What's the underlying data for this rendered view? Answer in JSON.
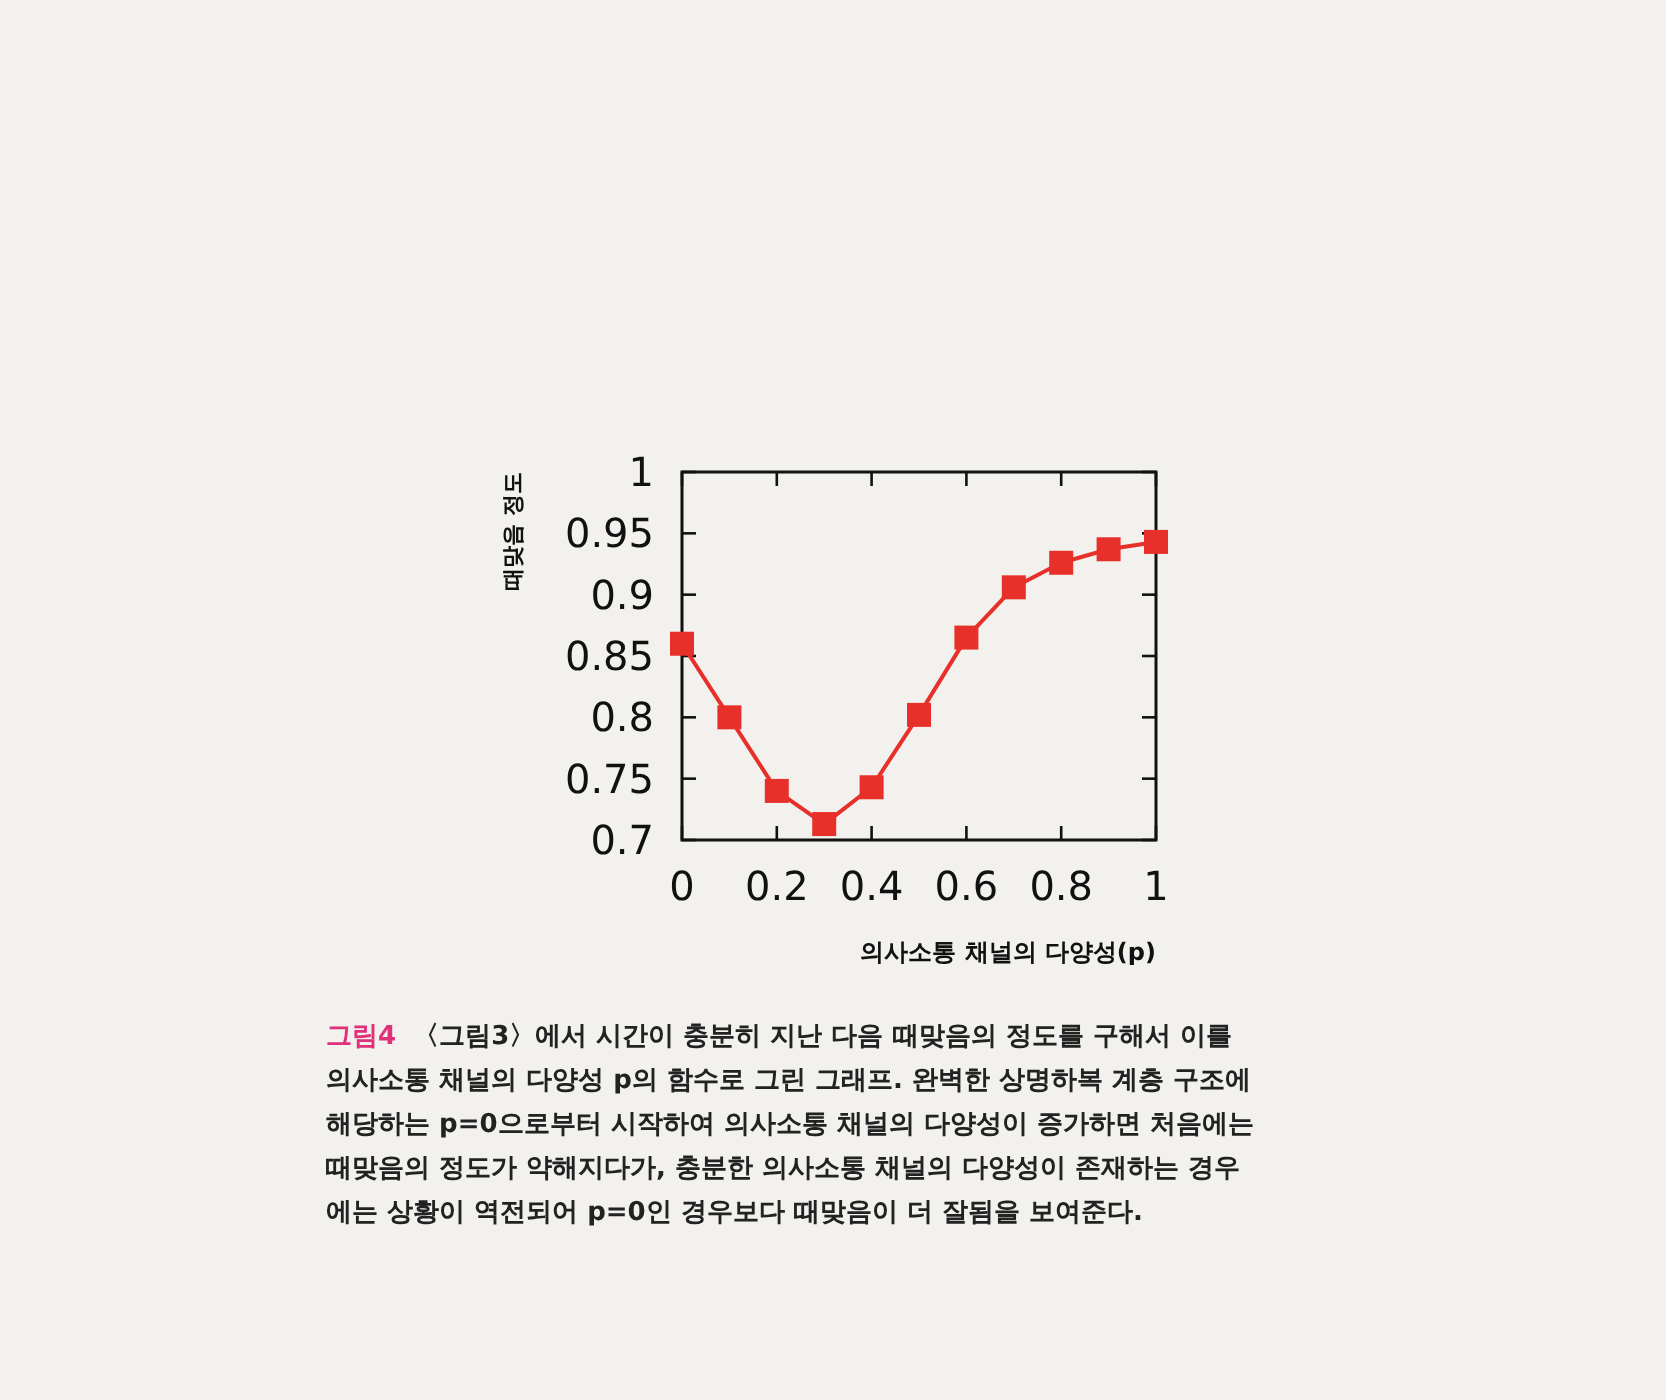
{
  "chart_data": {
    "type": "line",
    "xlabel": "의사소통 채널의 다양성(p)",
    "ylabel": "때맞음 정도",
    "x": [
      0,
      0.1,
      0.2,
      0.3,
      0.4,
      0.5,
      0.6,
      0.7,
      0.8,
      0.9,
      1
    ],
    "series": [
      {
        "color": "#e8302a",
        "values": [
          0.86,
          0.8,
          0.74,
          0.713,
          0.743,
          0.802,
          0.865,
          0.906,
          0.926,
          0.937,
          0.943
        ]
      }
    ],
    "xlim": [
      0,
      1
    ],
    "ylim": [
      0.7,
      1
    ],
    "xticks": [
      0,
      0.2,
      0.4,
      0.6,
      0.8,
      1
    ],
    "yticks": [
      0.7,
      0.75,
      0.8,
      0.85,
      0.9,
      0.95,
      1
    ],
    "marker": "square",
    "line_style": "solid",
    "grid": false,
    "annotations": [
      "그림4",
      "〈그림3〉에서 시간이 충분히 지난 다음 때맞음의 정도를 구해서 이를 의사소통 채널의 다양성 p의 함수로 그린 그래프. 완벽한 상명하복 계층 구조에 해당하는 p=0으로부터 시작하여 의사소통 채널의 다양성이 증가하면 처음에는 때맞음의 정도가 약해지다가, 충분한 의사소통 채널의 다양성이 존재하는 경우에는 상황이 역전되어 p=0인 경우보다 때맞음이 더 잘됨을 보여준다."
    ]
  }
}
